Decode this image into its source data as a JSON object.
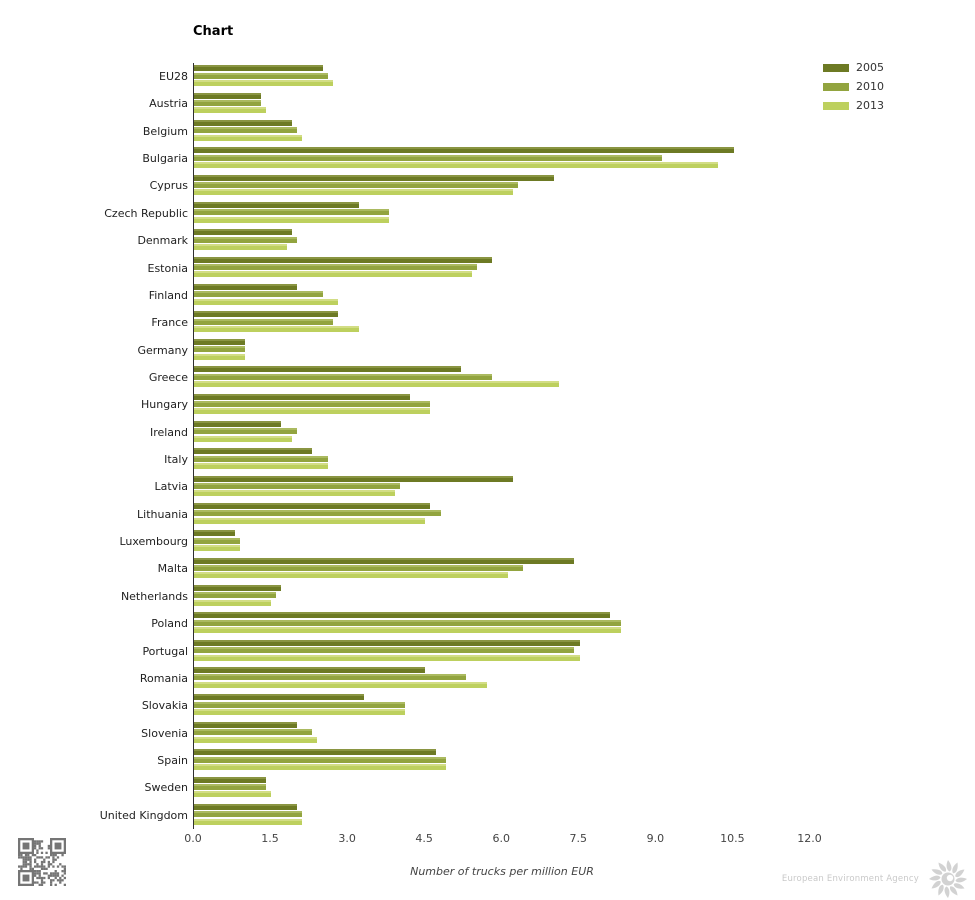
{
  "title": "Chart",
  "legend": [
    {
      "label": "2005",
      "color": "#6d7a24"
    },
    {
      "label": "2010",
      "color": "#92a43f"
    },
    {
      "label": "2013",
      "color": "#bdd05e"
    }
  ],
  "x_ticks": [
    "0.0",
    "1.5",
    "3.0",
    "4.5",
    "6.0",
    "7.5",
    "9.0",
    "10.5",
    "12.0"
  ],
  "xlabel": "Number of trucks per million EUR",
  "footer": {
    "agency": "European Environment Agency"
  },
  "icons": {
    "qr": "qr-code-icon",
    "logo": "eea-sunflower-logo-icon"
  },
  "colors": {
    "axis_line": "#2f2f2f",
    "series_2005_body": "#6d7a24",
    "series_2005_highlight": "#8a9542",
    "series_2010_body": "#92a43f",
    "series_2010_highlight": "#abba60",
    "series_2013_body": "#bdd05e",
    "series_2013_highlight": "#d2dd85",
    "qr_gray": "#757575",
    "footer_gray": "#cccccc"
  },
  "chart_data": {
    "type": "bar",
    "orientation": "horizontal",
    "title": "Chart",
    "xlabel": "Number of trucks per million EUR",
    "xlim": [
      0,
      12
    ],
    "x_tick_step": 1.5,
    "grid": false,
    "legend_position": "top-right",
    "categories": [
      "EU28",
      "Austria",
      "Belgium",
      "Bulgaria",
      "Cyprus",
      "Czech Republic",
      "Denmark",
      "Estonia",
      "Finland",
      "France",
      "Germany",
      "Greece",
      "Hungary",
      "Ireland",
      "Italy",
      "Latvia",
      "Lithuania",
      "Luxembourg",
      "Malta",
      "Netherlands",
      "Poland",
      "Portugal",
      "Romania",
      "Slovakia",
      "Slovenia",
      "Spain",
      "Sweden",
      "United Kingdom"
    ],
    "series": [
      {
        "name": "2005",
        "color": "#6d7a24",
        "values": [
          2.5,
          1.3,
          1.9,
          10.5,
          7.0,
          3.2,
          1.9,
          5.8,
          2.0,
          2.8,
          1.0,
          5.2,
          4.2,
          1.7,
          2.3,
          6.2,
          4.6,
          0.8,
          7.4,
          1.7,
          8.1,
          7.5,
          4.5,
          3.3,
          2.0,
          4.7,
          1.4,
          2.0
        ]
      },
      {
        "name": "2010",
        "color": "#92a43f",
        "values": [
          2.6,
          1.3,
          2.0,
          9.1,
          6.3,
          3.8,
          2.0,
          5.5,
          2.5,
          2.7,
          1.0,
          5.8,
          4.6,
          2.0,
          2.6,
          4.0,
          4.8,
          0.9,
          6.4,
          1.6,
          8.3,
          7.4,
          5.3,
          4.1,
          2.3,
          4.9,
          1.4,
          2.1
        ]
      },
      {
        "name": "2013",
        "color": "#bdd05e",
        "values": [
          2.7,
          1.4,
          2.1,
          10.2,
          6.2,
          3.8,
          1.8,
          5.4,
          2.8,
          3.2,
          1.0,
          7.1,
          4.6,
          1.9,
          2.6,
          3.9,
          4.5,
          0.9,
          6.1,
          1.5,
          8.3,
          7.5,
          5.7,
          4.1,
          2.4,
          4.9,
          1.5,
          2.1
        ]
      }
    ]
  }
}
